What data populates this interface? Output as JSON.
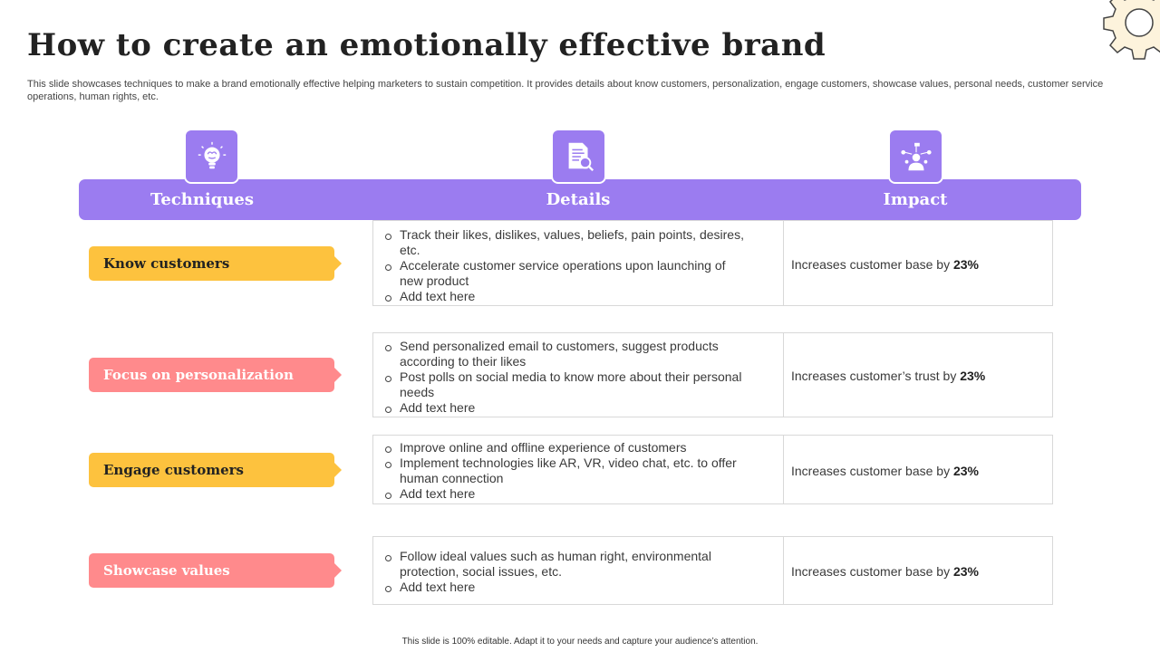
{
  "title": "How to create an emotionally effective brand",
  "subtitle": "This slide showcases techniques to make a brand emotionally effective helping marketers to sustain competition. It provides details about know customers, personalization, engage customers, showcase values, personal needs, customer service operations, human rights, etc.",
  "colors": {
    "accent": "#9b7cf0",
    "yellow": "#fdc23e",
    "pink": "#ff8a8c"
  },
  "headers": [
    {
      "label": "Techniques",
      "icon": "lightbulb-brain-icon"
    },
    {
      "label": "Details",
      "icon": "document-search-icon"
    },
    {
      "label": "Impact",
      "icon": "person-network-icon"
    }
  ],
  "rows": [
    {
      "technique": "Know customers",
      "color": "yellow",
      "details": [
        "Track their likes, dislikes, values, beliefs, pain points, desires, etc.",
        "Accelerate customer service operations upon launching of new product",
        "Add text here"
      ],
      "impact_text": "Increases customer base by",
      "impact_value": "23%"
    },
    {
      "technique": "Focus on personalization",
      "color": "pink",
      "details": [
        "Send personalized email to customers, suggest products according to their likes",
        "Post polls on social media to know more about their personal needs",
        "Add text here"
      ],
      "impact_text": "Increases customer’s trust by",
      "impact_value": "23%"
    },
    {
      "technique": "Engage customers",
      "color": "yellow",
      "details": [
        "Improve online and offline experience of customers",
        "Implement technologies like AR, VR, video chat, etc. to offer human connection",
        "Add text here"
      ],
      "impact_text": "Increases customer base by",
      "impact_value": "23%"
    },
    {
      "technique": "Showcase values",
      "color": "pink",
      "details": [
        "Follow ideal values such as human right, environmental protection, social issues, etc.",
        "Add text here"
      ],
      "impact_text": "Increases customer base by",
      "impact_value": "23%"
    }
  ],
  "footer": "This slide is 100% editable.  Adapt it to your needs and capture your audience’s attention."
}
